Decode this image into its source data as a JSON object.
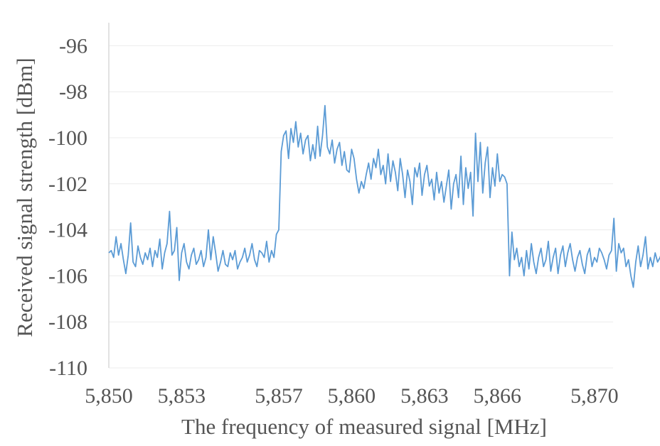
{
  "chart_data": {
    "type": "line",
    "title": "",
    "xlabel": "The frequency of measured signal [MHz]",
    "ylabel": "Received signal strength [dBm]",
    "xlim": [
      5850,
      5871
    ],
    "ylim": [
      -110,
      -95
    ],
    "x_ticks": [
      5850,
      5853,
      5857,
      5860,
      5863,
      5866,
      5870
    ],
    "x_tick_labels": [
      "5,850",
      "5,853",
      "5,857",
      "5,860",
      "5,863",
      "5,866",
      "5,870"
    ],
    "y_ticks": [
      -110,
      -108,
      -106,
      -104,
      -102,
      -100,
      -98,
      -96
    ],
    "y_tick_labels": [
      "-110",
      "-108",
      "-106",
      "-104",
      "-102",
      "-100",
      "-98",
      "-96"
    ],
    "grid": true,
    "line_color": "#5b9bd5",
    "x_start": 5850,
    "x_step": 0.1,
    "series": [
      {
        "values": [
          -105.0,
          -104.9,
          -105.2,
          -104.3,
          -105.1,
          -104.6,
          -105.3,
          -105.9,
          -105.1,
          -103.7,
          -105.4,
          -105.6,
          -104.7,
          -105.2,
          -105.5,
          -105.0,
          -105.3,
          -104.8,
          -105.6,
          -104.9,
          -105.2,
          -104.4,
          -105.7,
          -105.0,
          -104.6,
          -103.2,
          -105.1,
          -104.9,
          -103.9,
          -106.2,
          -105.0,
          -104.6,
          -105.4,
          -105.7,
          -105.1,
          -104.8,
          -105.5,
          -105.3,
          -104.9,
          -105.6,
          -105.2,
          -104.0,
          -105.3,
          -104.3,
          -105.0,
          -105.8,
          -105.4,
          -104.9,
          -105.5,
          -105.6,
          -105.0,
          -105.3,
          -104.9,
          -105.7,
          -105.4,
          -105.2,
          -104.8,
          -105.4,
          -105.1,
          -104.6,
          -105.3,
          -105.6,
          -104.9,
          -105.0,
          -105.2,
          -104.5,
          -105.4,
          -104.9,
          -105.2,
          -104.2,
          -104.0,
          -100.6,
          -99.9,
          -99.7,
          -100.9,
          -99.6,
          -100.2,
          -99.3,
          -100.4,
          -99.8,
          -100.7,
          -100.1,
          -99.9,
          -101.0,
          -100.3,
          -100.9,
          -99.5,
          -100.8,
          -99.9,
          -98.6,
          -100.4,
          -100.7,
          -100.1,
          -101.1,
          -100.5,
          -100.2,
          -101.2,
          -100.6,
          -101.4,
          -101.5,
          -100.5,
          -100.9,
          -101.8,
          -102.4,
          -101.9,
          -102.2,
          -101.6,
          -101.1,
          -101.8,
          -100.9,
          -101.3,
          -100.5,
          -101.6,
          -101.2,
          -102.0,
          -100.7,
          -101.9,
          -101.0,
          -101.5,
          -102.3,
          -100.9,
          -101.6,
          -102.6,
          -101.4,
          -101.9,
          -102.9,
          -101.3,
          -101.7,
          -101.1,
          -102.5,
          -101.6,
          -101.2,
          -102.1,
          -101.8,
          -102.7,
          -101.5,
          -102.4,
          -101.9,
          -102.8,
          -102.1,
          -101.4,
          -103.1,
          -102.0,
          -101.6,
          -102.6,
          -100.8,
          -102.9,
          -101.3,
          -102.2,
          -101.5,
          -103.4,
          -99.8,
          -101.9,
          -100.2,
          -102.4,
          -101.1,
          -100.4,
          -102.6,
          -101.3,
          -102.1,
          -100.7,
          -101.9,
          -101.6,
          -101.7,
          -102.0,
          -106.0,
          -104.1,
          -105.3,
          -104.8,
          -105.6,
          -105.2,
          -106.0,
          -104.9,
          -105.7,
          -104.6,
          -105.4,
          -105.9,
          -105.2,
          -104.8,
          -105.6,
          -105.3,
          -104.5,
          -105.8,
          -105.2,
          -104.8,
          -105.9,
          -105.1,
          -104.7,
          -105.6,
          -105.0,
          -104.6,
          -105.3,
          -105.8,
          -105.2,
          -104.9,
          -105.5,
          -105.9,
          -105.1,
          -104.8,
          -105.6,
          -105.2,
          -105.4,
          -104.8,
          -105.0,
          -105.3,
          -105.7,
          -105.1,
          -104.9,
          -103.5,
          -105.8,
          -104.6,
          -105.0,
          -104.8,
          -105.6,
          -105.3,
          -106.0,
          -106.5,
          -105.4,
          -104.7,
          -105.6,
          -105.1,
          -104.3,
          -105.7,
          -105.2,
          -105.6,
          -105.0,
          -105.4,
          -105.2,
          -104.9,
          -105.5,
          -105.0,
          -105.8,
          -105.3,
          -105.6,
          -104.9,
          -105.4
        ]
      }
    ]
  }
}
